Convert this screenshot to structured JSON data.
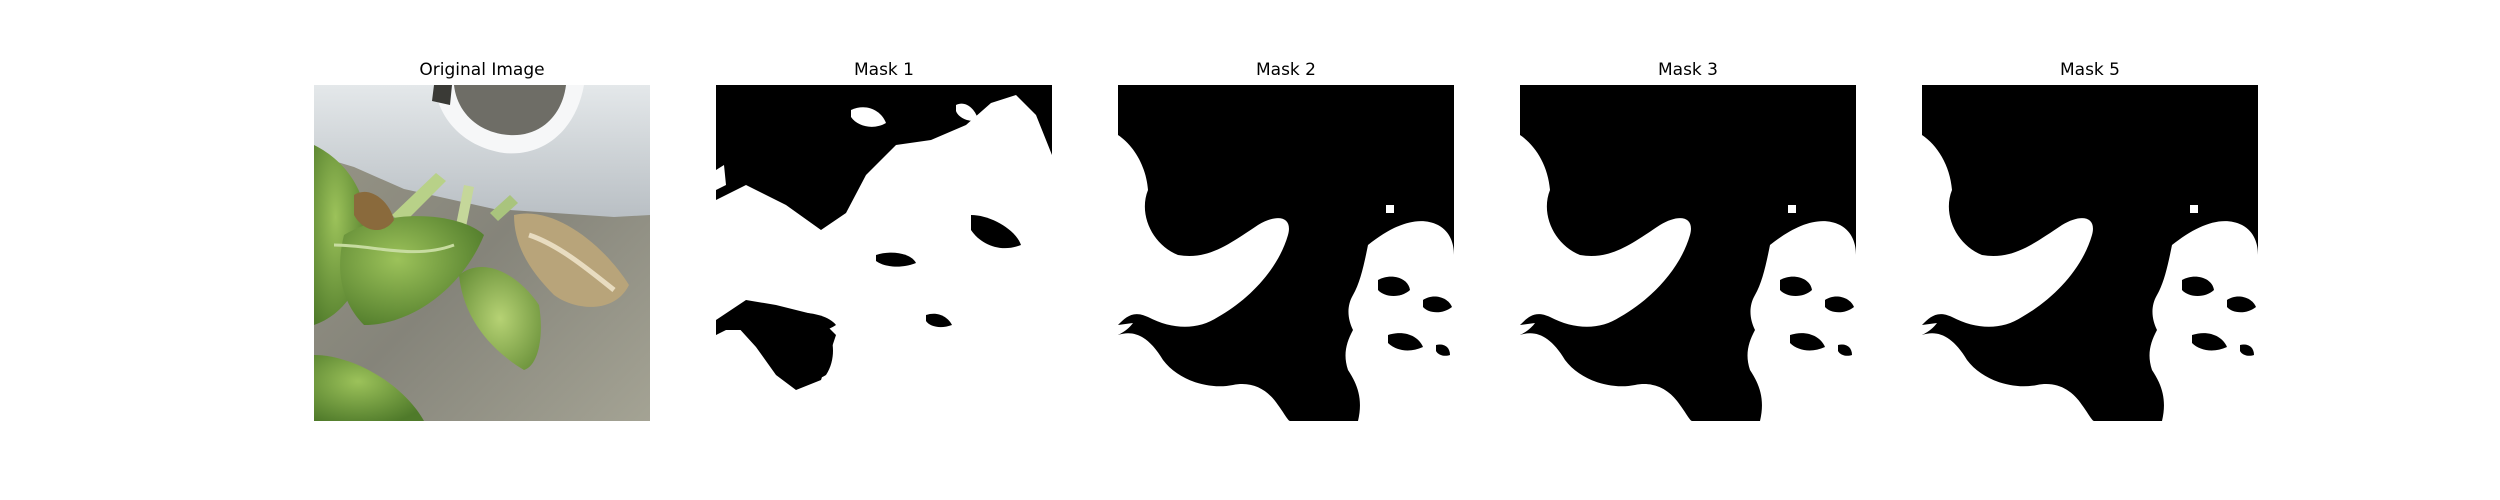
{
  "panels": [
    {
      "title": "Original Image",
      "kind": "photo"
    },
    {
      "title": "Mask 1",
      "kind": "mask-a"
    },
    {
      "title": "Mask 2",
      "kind": "mask-b"
    },
    {
      "title": "Mask 3",
      "kind": "mask-b"
    },
    {
      "title": "Mask 5",
      "kind": "mask-b"
    }
  ],
  "colors": {
    "background": "#ffffff",
    "mask_fg": "#ffffff",
    "mask_bg": "#000000",
    "pipe": "#d3d8dc",
    "leaf": "#6f9a3c",
    "soil": "#8c8a7c"
  }
}
